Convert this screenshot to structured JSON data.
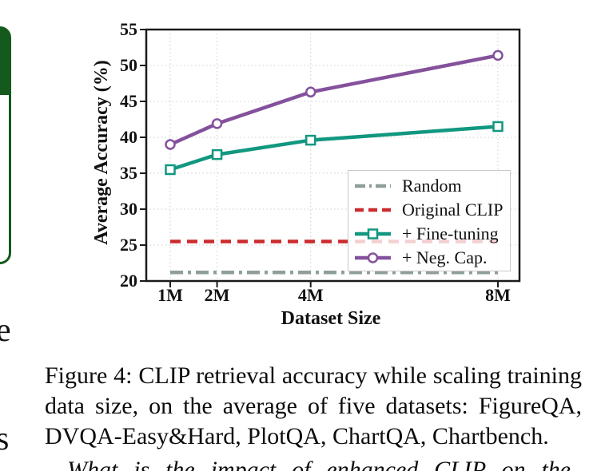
{
  "left_column": {
    "cut_char_1": "e",
    "cut_char_2": "s"
  },
  "chart_data": {
    "type": "line",
    "title": "",
    "xlabel": "Dataset Size",
    "ylabel": "Average Accuracy (%)",
    "x": [
      1,
      2,
      4,
      8
    ],
    "xtick_labels": [
      "1M",
      "2M",
      "4M",
      "8M"
    ],
    "ylim": [
      20,
      55
    ],
    "yticks": [
      20,
      25,
      30,
      35,
      40,
      45,
      50,
      55
    ],
    "grid": true,
    "legend_position": "lower right",
    "series": [
      {
        "name": "Random",
        "type": "hline",
        "value": 21.2,
        "style": "dashdot",
        "color": "#8f9e99"
      },
      {
        "name": "Original CLIP",
        "type": "hline",
        "value": 25.5,
        "style": "dashed",
        "color": "#cb2b2f"
      },
      {
        "name": "+ Fine-tuning",
        "type": "line",
        "values": [
          35.5,
          37.6,
          39.6,
          41.5
        ],
        "style": "solid",
        "marker": "square",
        "color": "#129780"
      },
      {
        "name": "+ Neg. Cap.",
        "type": "line",
        "values": [
          39.0,
          41.9,
          46.3,
          51.4
        ],
        "style": "solid",
        "marker": "circle",
        "color": "#84519c"
      }
    ]
  },
  "caption": {
    "lines": [
      "Figure 4: CLIP retrieval accuracy while scaling training",
      "data size, on the average of five datasets: FigureQA,",
      "DVQA-Easy&Hard, PlotQA, ChartQA, Chartbench."
    ]
  },
  "following_text": "What is the impact of enhanced CLIP on the",
  "colors": {
    "green_box": "#155a1d",
    "spine": "#1a1a1a",
    "gridline": "#d8d8d8",
    "legend_border": "#c9c9c9"
  }
}
